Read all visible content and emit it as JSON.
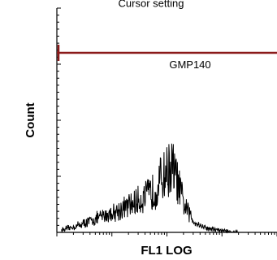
{
  "chart_data": {
    "type": "area",
    "title": "Cursor setting",
    "xlabel": "FL1 LOG",
    "ylabel": "Count",
    "xscale": "log",
    "xlim": [
      0.1,
      1000
    ],
    "ylim": [
      0,
      256
    ],
    "grid": false,
    "gate": {
      "label": "GMP140",
      "x_start": 0.1,
      "x_end": 1000,
      "y": 205,
      "color": "#8b1a1a"
    },
    "series": [
      {
        "color": "#000000",
        "x": [
          0.12,
          0.2,
          0.3,
          0.5,
          0.8,
          1.2,
          2,
          3,
          4,
          5,
          6,
          7,
          8,
          9,
          10,
          11,
          12,
          13,
          14,
          15,
          16,
          18,
          20,
          25,
          30,
          40,
          60,
          100,
          150,
          200
        ],
        "y": [
          3,
          6,
          10,
          15,
          20,
          24,
          30,
          36,
          40,
          44,
          48,
          55,
          62,
          66,
          70,
          72,
          73,
          72,
          66,
          60,
          54,
          44,
          32,
          22,
          14,
          8,
          4,
          2,
          1,
          0
        ]
      }
    ]
  }
}
